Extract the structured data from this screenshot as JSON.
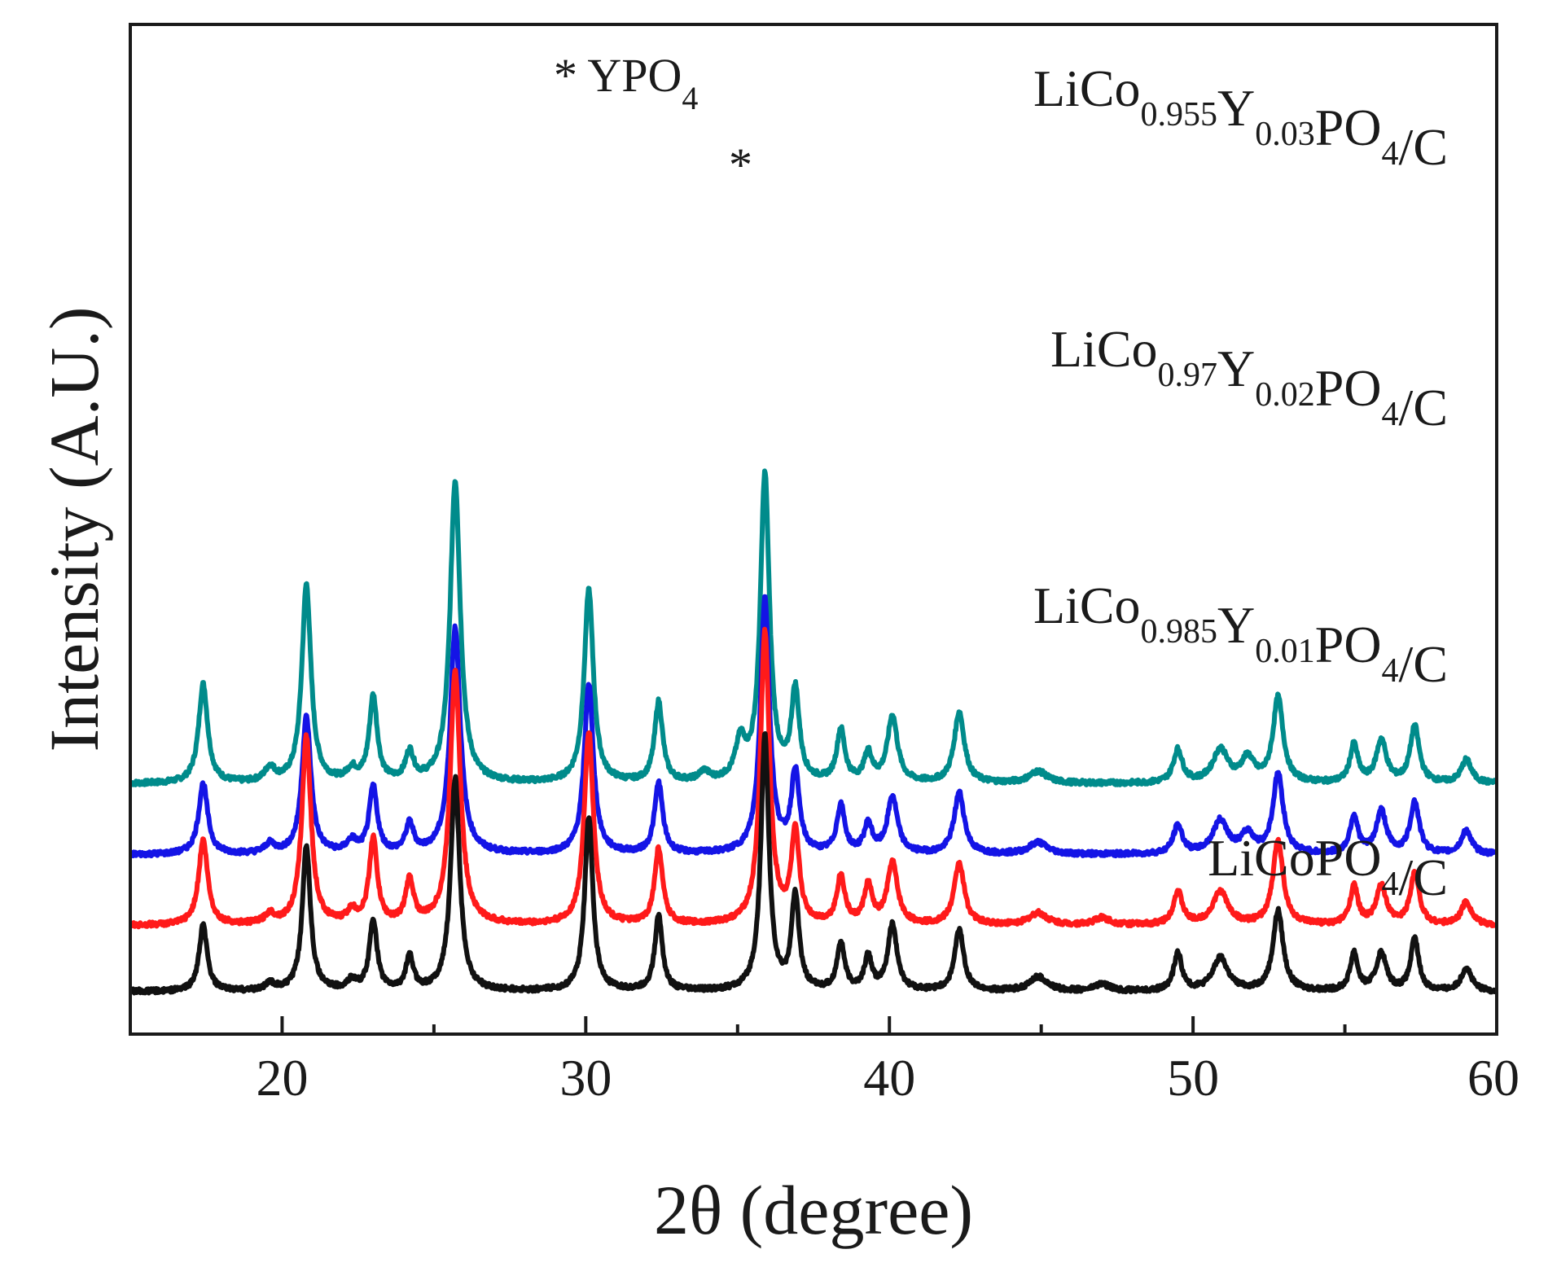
{
  "chart_data": {
    "type": "line",
    "title": "",
    "xlabel": "2θ (degree)",
    "ylabel": "Intensity (A.U.)",
    "xlim": [
      15,
      60
    ],
    "x_ticks": [
      20,
      30,
      40,
      50,
      60
    ],
    "y_ticks": [],
    "grid": false,
    "legend": "inline labels at right of each trace",
    "annotations": [
      {
        "id": "legend-ypo4",
        "text": "* YPO",
        "sub": "4"
      },
      {
        "id": "ypo4-peak",
        "text": "*",
        "x": 35.1,
        "series": 0
      }
    ],
    "series": [
      {
        "name": "LiCo0.955Y0.03PO4/C",
        "label_parts": [
          {
            "t": "LiCo",
            "sub": false
          },
          {
            "t": "0.955",
            "sub": true
          },
          {
            "t": "Y",
            "sub": false
          },
          {
            "t": "0.03",
            "sub": true
          },
          {
            "t": "PO",
            "sub": false
          },
          {
            "t": "4",
            "sub": true
          },
          {
            "t": "/C",
            "sub": false
          }
        ],
        "color": "#008b8b",
        "baseline": 0.88,
        "peaks": [
          {
            "x": 17.4,
            "h": 0.42,
            "w": 0.18
          },
          {
            "x": 19.6,
            "h": 0.06,
            "w": 0.2
          },
          {
            "x": 20.8,
            "h": 0.84,
            "w": 0.18
          },
          {
            "x": 22.3,
            "h": 0.05,
            "w": 0.2
          },
          {
            "x": 23.0,
            "h": 0.36,
            "w": 0.16
          },
          {
            "x": 24.2,
            "h": 0.12,
            "w": 0.16
          },
          {
            "x": 25.7,
            "h": 1.28,
            "w": 0.2
          },
          {
            "x": 30.1,
            "h": 0.82,
            "w": 0.18
          },
          {
            "x": 32.4,
            "h": 0.34,
            "w": 0.16
          },
          {
            "x": 33.9,
            "h": 0.04,
            "w": 0.2
          },
          {
            "x": 35.1,
            "h": 0.16,
            "w": 0.2
          },
          {
            "x": 35.9,
            "h": 1.3,
            "w": 0.18
          },
          {
            "x": 36.9,
            "h": 0.38,
            "w": 0.16
          },
          {
            "x": 38.4,
            "h": 0.22,
            "w": 0.16
          },
          {
            "x": 39.3,
            "h": 0.12,
            "w": 0.16
          },
          {
            "x": 40.1,
            "h": 0.28,
            "w": 0.2
          },
          {
            "x": 42.3,
            "h": 0.3,
            "w": 0.2
          },
          {
            "x": 44.9,
            "h": 0.05,
            "w": 0.35
          },
          {
            "x": 49.5,
            "h": 0.14,
            "w": 0.18
          },
          {
            "x": 50.9,
            "h": 0.14,
            "w": 0.3
          },
          {
            "x": 51.8,
            "h": 0.1,
            "w": 0.25
          },
          {
            "x": 52.8,
            "h": 0.36,
            "w": 0.2
          },
          {
            "x": 55.3,
            "h": 0.16,
            "w": 0.16
          },
          {
            "x": 56.2,
            "h": 0.18,
            "w": 0.2
          },
          {
            "x": 57.3,
            "h": 0.24,
            "w": 0.18
          },
          {
            "x": 59.0,
            "h": 0.1,
            "w": 0.2
          }
        ]
      },
      {
        "name": "LiCo0.97Y0.02PO4/C",
        "label_parts": [
          {
            "t": "LiCo",
            "sub": false
          },
          {
            "t": "0.97",
            "sub": true
          },
          {
            "t": "Y",
            "sub": false
          },
          {
            "t": "0.02",
            "sub": true
          },
          {
            "t": "PO",
            "sub": false
          },
          {
            "t": "4",
            "sub": true
          },
          {
            "t": "/C",
            "sub": false
          }
        ],
        "color": "#1414e6",
        "baseline": 0.58,
        "peaks": [
          {
            "x": 17.4,
            "h": 0.3,
            "w": 0.18
          },
          {
            "x": 19.6,
            "h": 0.04,
            "w": 0.2
          },
          {
            "x": 20.8,
            "h": 0.58,
            "w": 0.18
          },
          {
            "x": 22.3,
            "h": 0.05,
            "w": 0.2
          },
          {
            "x": 23.0,
            "h": 0.28,
            "w": 0.16
          },
          {
            "x": 24.2,
            "h": 0.12,
            "w": 0.16
          },
          {
            "x": 25.7,
            "h": 0.96,
            "w": 0.2
          },
          {
            "x": 30.1,
            "h": 0.72,
            "w": 0.18
          },
          {
            "x": 32.4,
            "h": 0.3,
            "w": 0.16
          },
          {
            "x": 35.9,
            "h": 1.08,
            "w": 0.18
          },
          {
            "x": 36.9,
            "h": 0.34,
            "w": 0.16
          },
          {
            "x": 38.4,
            "h": 0.2,
            "w": 0.16
          },
          {
            "x": 39.3,
            "h": 0.12,
            "w": 0.16
          },
          {
            "x": 40.1,
            "h": 0.24,
            "w": 0.2
          },
          {
            "x": 42.3,
            "h": 0.26,
            "w": 0.2
          },
          {
            "x": 44.9,
            "h": 0.05,
            "w": 0.35
          },
          {
            "x": 49.5,
            "h": 0.12,
            "w": 0.18
          },
          {
            "x": 50.9,
            "h": 0.14,
            "w": 0.3
          },
          {
            "x": 51.8,
            "h": 0.08,
            "w": 0.25
          },
          {
            "x": 52.8,
            "h": 0.34,
            "w": 0.2
          },
          {
            "x": 55.3,
            "h": 0.16,
            "w": 0.16
          },
          {
            "x": 56.2,
            "h": 0.18,
            "w": 0.2
          },
          {
            "x": 57.3,
            "h": 0.22,
            "w": 0.18
          },
          {
            "x": 59.0,
            "h": 0.1,
            "w": 0.2
          }
        ]
      },
      {
        "name": "LiCo0.985Y0.01PO4/C",
        "label_parts": [
          {
            "t": "LiCo",
            "sub": false
          },
          {
            "t": "0.985",
            "sub": true
          },
          {
            "t": "Y",
            "sub": false
          },
          {
            "t": "0.01",
            "sub": true
          },
          {
            "t": "PO",
            "sub": false
          },
          {
            "t": "4",
            "sub": true
          },
          {
            "t": "/C",
            "sub": false
          }
        ],
        "color": "#ff1a1a",
        "baseline": 0.28,
        "peaks": [
          {
            "x": 17.4,
            "h": 0.36,
            "w": 0.18
          },
          {
            "x": 19.6,
            "h": 0.04,
            "w": 0.2
          },
          {
            "x": 20.8,
            "h": 0.8,
            "w": 0.18
          },
          {
            "x": 22.3,
            "h": 0.05,
            "w": 0.2
          },
          {
            "x": 23.0,
            "h": 0.36,
            "w": 0.16
          },
          {
            "x": 24.2,
            "h": 0.18,
            "w": 0.16
          },
          {
            "x": 25.7,
            "h": 1.08,
            "w": 0.2
          },
          {
            "x": 30.1,
            "h": 0.82,
            "w": 0.18
          },
          {
            "x": 32.4,
            "h": 0.32,
            "w": 0.16
          },
          {
            "x": 35.9,
            "h": 1.24,
            "w": 0.18
          },
          {
            "x": 36.9,
            "h": 0.38,
            "w": 0.16
          },
          {
            "x": 38.4,
            "h": 0.2,
            "w": 0.16
          },
          {
            "x": 39.3,
            "h": 0.16,
            "w": 0.16
          },
          {
            "x": 40.1,
            "h": 0.26,
            "w": 0.2
          },
          {
            "x": 42.3,
            "h": 0.26,
            "w": 0.2
          },
          {
            "x": 44.9,
            "h": 0.05,
            "w": 0.35
          },
          {
            "x": 47.0,
            "h": 0.03,
            "w": 0.3
          },
          {
            "x": 49.5,
            "h": 0.14,
            "w": 0.18
          },
          {
            "x": 50.9,
            "h": 0.14,
            "w": 0.3
          },
          {
            "x": 52.8,
            "h": 0.36,
            "w": 0.2
          },
          {
            "x": 55.3,
            "h": 0.16,
            "w": 0.16
          },
          {
            "x": 56.2,
            "h": 0.16,
            "w": 0.2
          },
          {
            "x": 57.3,
            "h": 0.22,
            "w": 0.18
          },
          {
            "x": 59.0,
            "h": 0.1,
            "w": 0.2
          }
        ]
      },
      {
        "name": "LiCoPO4/C",
        "label_parts": [
          {
            "t": "LiCoPO",
            "sub": false
          },
          {
            "t": "4",
            "sub": true
          },
          {
            "t": "/C",
            "sub": false
          }
        ],
        "color": "#111111",
        "baseline": 0.0,
        "peaks": [
          {
            "x": 17.4,
            "h": 0.28,
            "w": 0.16
          },
          {
            "x": 19.6,
            "h": 0.03,
            "w": 0.2
          },
          {
            "x": 20.8,
            "h": 0.62,
            "w": 0.16
          },
          {
            "x": 22.3,
            "h": 0.04,
            "w": 0.2
          },
          {
            "x": 23.0,
            "h": 0.3,
            "w": 0.15
          },
          {
            "x": 24.2,
            "h": 0.14,
            "w": 0.15
          },
          {
            "x": 25.7,
            "h": 0.9,
            "w": 0.18
          },
          {
            "x": 30.1,
            "h": 0.74,
            "w": 0.16
          },
          {
            "x": 32.4,
            "h": 0.32,
            "w": 0.15
          },
          {
            "x": 35.9,
            "h": 1.08,
            "w": 0.16
          },
          {
            "x": 36.9,
            "h": 0.4,
            "w": 0.15
          },
          {
            "x": 38.4,
            "h": 0.2,
            "w": 0.15
          },
          {
            "x": 39.3,
            "h": 0.14,
            "w": 0.15
          },
          {
            "x": 40.1,
            "h": 0.28,
            "w": 0.18
          },
          {
            "x": 42.3,
            "h": 0.26,
            "w": 0.18
          },
          {
            "x": 44.9,
            "h": 0.06,
            "w": 0.35
          },
          {
            "x": 47.0,
            "h": 0.03,
            "w": 0.3
          },
          {
            "x": 49.5,
            "h": 0.16,
            "w": 0.16
          },
          {
            "x": 50.9,
            "h": 0.14,
            "w": 0.3
          },
          {
            "x": 52.8,
            "h": 0.34,
            "w": 0.2
          },
          {
            "x": 55.3,
            "h": 0.16,
            "w": 0.15
          },
          {
            "x": 56.2,
            "h": 0.16,
            "w": 0.2
          },
          {
            "x": 57.3,
            "h": 0.22,
            "w": 0.16
          },
          {
            "x": 59.0,
            "h": 0.1,
            "w": 0.2
          }
        ]
      }
    ]
  }
}
